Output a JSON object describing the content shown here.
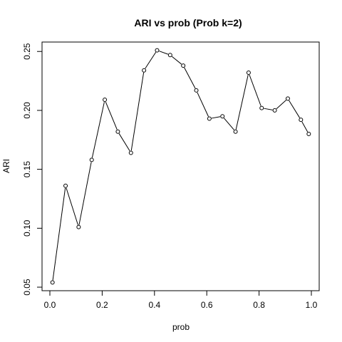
{
  "chart_data": {
    "type": "line",
    "title": "ARI vs prob (Prob k=2)",
    "xlabel": "prob",
    "ylabel": "ARI",
    "xlim": [
      -0.03,
      1.03
    ],
    "ylim": [
      0.047,
      0.258
    ],
    "x_ticks": [
      0.0,
      0.2,
      0.4,
      0.6,
      0.8,
      1.0
    ],
    "x_tick_labels": [
      "0.0",
      "0.2",
      "0.4",
      "0.6",
      "0.8",
      "1.0"
    ],
    "y_ticks": [
      0.05,
      0.1,
      0.15,
      0.2,
      0.25
    ],
    "y_tick_labels": [
      "0.05",
      "0.10",
      "0.15",
      "0.20",
      "0.25"
    ],
    "grid": false,
    "marker": "open-circle",
    "series": [
      {
        "x": [
          0.01,
          0.06,
          0.11,
          0.16,
          0.21,
          0.26,
          0.31,
          0.36,
          0.41,
          0.46,
          0.51,
          0.56,
          0.61,
          0.66,
          0.71,
          0.76,
          0.81,
          0.86,
          0.91,
          0.96,
          0.99
        ],
        "values": [
          0.054,
          0.136,
          0.101,
          0.158,
          0.209,
          0.182,
          0.164,
          0.234,
          0.251,
          0.247,
          0.238,
          0.217,
          0.193,
          0.195,
          0.182,
          0.232,
          0.202,
          0.2,
          0.21,
          0.192,
          0.18
        ]
      }
    ]
  }
}
